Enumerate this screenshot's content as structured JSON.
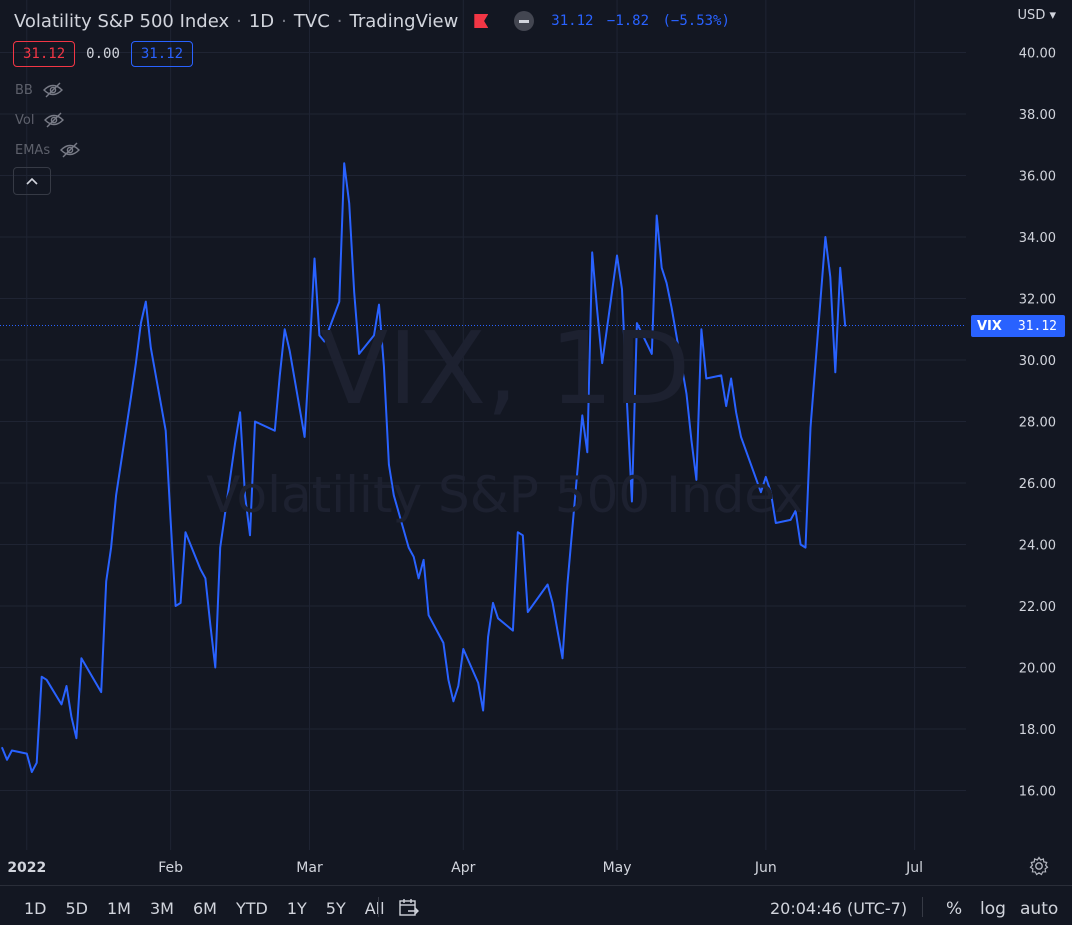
{
  "header": {
    "symbol_name": "Volatility S&P 500 Index",
    "interval": "1D",
    "exchange": "TVC",
    "source": "TradingView",
    "last": "31.12",
    "change": "−1.82",
    "change_pct": "(−5.53%)"
  },
  "ohlc_boxes": {
    "sell": "31.12",
    "spread": "0.00",
    "buy": "31.12"
  },
  "indicators": [
    "BB",
    "Vol",
    "EMAs"
  ],
  "watermark": {
    "symbol": "VIX, 1D",
    "name": "Volatility S&P 500 Index"
  },
  "currency": "USD",
  "price_tag": {
    "symbol": "VIX",
    "value": "31.12"
  },
  "bottom": {
    "ranges": [
      "1D",
      "5D",
      "1M",
      "3M",
      "6M",
      "YTD",
      "1Y",
      "5Y",
      "All"
    ],
    "time": "20:04:46 (UTC-7)",
    "percent": "%",
    "log": "log",
    "auto": "auto"
  },
  "colors": {
    "background": "#131722",
    "line": "#2962ff",
    "grid": "#1f2433",
    "text": "#d1d4dc",
    "down": "#f23645"
  },
  "chart_data": {
    "type": "line",
    "title": "Volatility S&P 500 Index · 1D · TVC",
    "ylim": [
      14.5,
      41
    ],
    "yticks": [
      "40.00",
      "38.00",
      "36.00",
      "34.00",
      "32.00",
      "30.00",
      "28.00",
      "26.00",
      "24.00",
      "22.00",
      "20.00",
      "18.00",
      "16.00"
    ],
    "xlim": [
      "2021-12-29",
      "2022-07-20"
    ],
    "xticks": [
      {
        "label": "2022",
        "date": "2022-01-03"
      },
      {
        "label": "Feb",
        "date": "2022-02-01"
      },
      {
        "label": "Mar",
        "date": "2022-03-01"
      },
      {
        "label": "Apr",
        "date": "2022-04-01"
      },
      {
        "label": "May",
        "date": "2022-05-02"
      },
      {
        "label": "Jun",
        "date": "2022-06-01"
      },
      {
        "label": "Jul",
        "date": "2022-07-01"
      }
    ],
    "current_value": 31.12,
    "series": [
      {
        "name": "VIX",
        "x": [
          "2021-12-29",
          "2021-12-30",
          "2021-12-31",
          "2022-01-03",
          "2022-01-04",
          "2022-01-05",
          "2022-01-06",
          "2022-01-07",
          "2022-01-10",
          "2022-01-11",
          "2022-01-12",
          "2022-01-13",
          "2022-01-14",
          "2022-01-18",
          "2022-01-19",
          "2022-01-20",
          "2022-01-21",
          "2022-01-24",
          "2022-01-25",
          "2022-01-26",
          "2022-01-27",
          "2022-01-28",
          "2022-01-31",
          "2022-02-01",
          "2022-02-02",
          "2022-02-03",
          "2022-02-04",
          "2022-02-07",
          "2022-02-08",
          "2022-02-09",
          "2022-02-10",
          "2022-02-11",
          "2022-02-14",
          "2022-02-15",
          "2022-02-16",
          "2022-02-17",
          "2022-02-18",
          "2022-02-22",
          "2022-02-23",
          "2022-02-24",
          "2022-02-25",
          "2022-02-28",
          "2022-03-01",
          "2022-03-02",
          "2022-03-03",
          "2022-03-04",
          "2022-03-07",
          "2022-03-08",
          "2022-03-09",
          "2022-03-10",
          "2022-03-11",
          "2022-03-14",
          "2022-03-15",
          "2022-03-16",
          "2022-03-17",
          "2022-03-18",
          "2022-03-21",
          "2022-03-22",
          "2022-03-23",
          "2022-03-24",
          "2022-03-25",
          "2022-03-28",
          "2022-03-29",
          "2022-03-30",
          "2022-03-31",
          "2022-04-01",
          "2022-04-04",
          "2022-04-05",
          "2022-04-06",
          "2022-04-07",
          "2022-04-08",
          "2022-04-11",
          "2022-04-12",
          "2022-04-13",
          "2022-04-14",
          "2022-04-18",
          "2022-04-19",
          "2022-04-20",
          "2022-04-21",
          "2022-04-22",
          "2022-04-25",
          "2022-04-26",
          "2022-04-27",
          "2022-04-28",
          "2022-04-29",
          "2022-05-02",
          "2022-05-03",
          "2022-05-04",
          "2022-05-05",
          "2022-05-06",
          "2022-05-09",
          "2022-05-10",
          "2022-05-11",
          "2022-05-12",
          "2022-05-13",
          "2022-05-16",
          "2022-05-17",
          "2022-05-18",
          "2022-05-19",
          "2022-05-20",
          "2022-05-23",
          "2022-05-24",
          "2022-05-25",
          "2022-05-26",
          "2022-05-27",
          "2022-05-31",
          "2022-06-01",
          "2022-06-02",
          "2022-06-03",
          "2022-06-06",
          "2022-06-07",
          "2022-06-08",
          "2022-06-09",
          "2022-06-10",
          "2022-06-13",
          "2022-06-14",
          "2022-06-15",
          "2022-06-16",
          "2022-06-17"
        ],
        "values": [
          17.4,
          17.0,
          17.3,
          17.2,
          16.6,
          16.9,
          19.7,
          19.6,
          18.8,
          19.4,
          18.4,
          17.7,
          20.3,
          19.2,
          22.8,
          23.9,
          25.6,
          28.8,
          29.9,
          31.2,
          31.9,
          30.4,
          27.7,
          24.8,
          22.0,
          22.1,
          24.4,
          23.2,
          22.9,
          21.4,
          20.0,
          23.9,
          27.3,
          28.3,
          25.6,
          24.3,
          28.0,
          27.7,
          29.5,
          31.0,
          30.3,
          27.5,
          30.2,
          33.3,
          30.8,
          30.6,
          31.9,
          36.4,
          35.1,
          32.2,
          30.2,
          30.8,
          31.8,
          29.8,
          26.6,
          25.6,
          23.9,
          23.6,
          22.9,
          23.5,
          21.7,
          20.8,
          19.6,
          18.9,
          19.4,
          20.6,
          19.5,
          18.6,
          21.0,
          22.1,
          21.6,
          21.2,
          24.4,
          24.3,
          21.8,
          22.7,
          22.1,
          21.2,
          20.3,
          22.7,
          28.2,
          27.0,
          33.5,
          31.6,
          29.9,
          33.4,
          32.3,
          28.6,
          25.4,
          31.2,
          30.2,
          34.7,
          33.0,
          32.5,
          31.7,
          28.9,
          27.4,
          26.1,
          31.0,
          29.4,
          29.5,
          28.5,
          29.4,
          28.3,
          27.5,
          25.7,
          26.2,
          25.7,
          24.7,
          24.8,
          25.1,
          24.0,
          23.9,
          27.8,
          34.0,
          32.7,
          29.6,
          33.0,
          31.1
        ]
      }
    ]
  }
}
